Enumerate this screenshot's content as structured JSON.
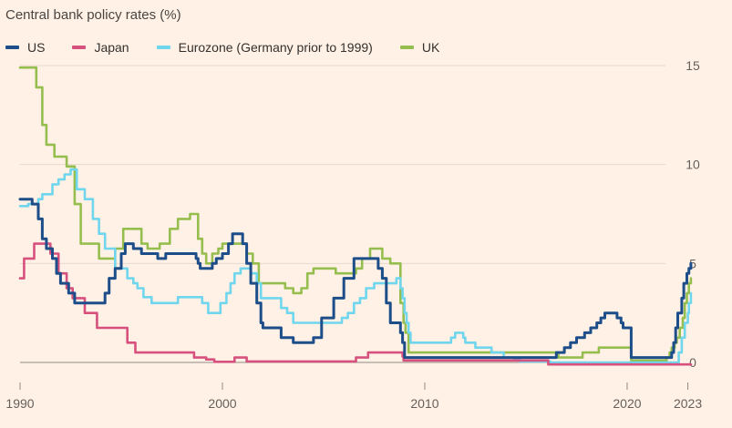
{
  "chart_data": {
    "type": "line",
    "title": "Central bank policy rates (%)",
    "xlabel": "",
    "ylabel": "",
    "xlim": [
      1990,
      2023.2
    ],
    "ylim": [
      0,
      15
    ],
    "y_ticks": [
      0,
      5,
      10,
      15
    ],
    "x_ticks": [
      1990,
      2000,
      2010,
      2020,
      2023
    ],
    "grid": true,
    "legend_position": "top-left",
    "series": [
      {
        "name": "US",
        "color": "#1d4e89",
        "points": [
          [
            1990,
            8.25
          ],
          [
            1990.6,
            8.0
          ],
          [
            1990.9,
            7.25
          ],
          [
            1991.1,
            6.25
          ],
          [
            1991.3,
            5.75
          ],
          [
            1991.6,
            5.25
          ],
          [
            1991.8,
            4.5
          ],
          [
            1992.0,
            4.0
          ],
          [
            1992.4,
            3.5
          ],
          [
            1992.7,
            3.0
          ],
          [
            1994.0,
            3.0
          ],
          [
            1994.2,
            3.5
          ],
          [
            1994.4,
            4.25
          ],
          [
            1994.7,
            4.75
          ],
          [
            1995.0,
            5.5
          ],
          [
            1995.2,
            6.0
          ],
          [
            1995.6,
            5.75
          ],
          [
            1996.0,
            5.5
          ],
          [
            1996.8,
            5.25
          ],
          [
            1997.2,
            5.5
          ],
          [
            1998.7,
            5.25
          ],
          [
            1998.8,
            5.0
          ],
          [
            1998.9,
            4.75
          ],
          [
            1999.5,
            5.0
          ],
          [
            1999.7,
            5.25
          ],
          [
            2000.0,
            5.5
          ],
          [
            2000.3,
            6.0
          ],
          [
            2000.5,
            6.5
          ],
          [
            2001.0,
            6.0
          ],
          [
            2001.2,
            5.0
          ],
          [
            2001.4,
            4.0
          ],
          [
            2001.7,
            3.0
          ],
          [
            2001.9,
            2.0
          ],
          [
            2002.0,
            1.75
          ],
          [
            2002.9,
            1.25
          ],
          [
            2003.5,
            1.0
          ],
          [
            2004.5,
            1.25
          ],
          [
            2004.9,
            2.25
          ],
          [
            2005.5,
            3.25
          ],
          [
            2006.0,
            4.25
          ],
          [
            2006.5,
            5.25
          ],
          [
            2007.6,
            5.25
          ],
          [
            2007.7,
            4.75
          ],
          [
            2007.9,
            4.25
          ],
          [
            2008.1,
            3.0
          ],
          [
            2008.3,
            2.0
          ],
          [
            2008.8,
            1.5
          ],
          [
            2008.9,
            1.0
          ],
          [
            2009.0,
            0.25
          ],
          [
            2015.9,
            0.25
          ],
          [
            2016.5,
            0.5
          ],
          [
            2016.9,
            0.75
          ],
          [
            2017.2,
            1.0
          ],
          [
            2017.5,
            1.25
          ],
          [
            2017.9,
            1.5
          ],
          [
            2018.2,
            1.75
          ],
          [
            2018.5,
            2.0
          ],
          [
            2018.7,
            2.25
          ],
          [
            2018.9,
            2.5
          ],
          [
            2019.5,
            2.25
          ],
          [
            2019.7,
            2.0
          ],
          [
            2019.8,
            1.75
          ],
          [
            2020.2,
            0.25
          ],
          [
            2022.2,
            0.5
          ],
          [
            2022.3,
            1.0
          ],
          [
            2022.4,
            1.75
          ],
          [
            2022.5,
            2.5
          ],
          [
            2022.7,
            3.25
          ],
          [
            2022.8,
            4.0
          ],
          [
            2022.95,
            4.5
          ],
          [
            2023.05,
            4.75
          ],
          [
            2023.15,
            5.0
          ]
        ]
      },
      {
        "name": "Japan",
        "color": "#d6517d",
        "points": [
          [
            1990,
            4.25
          ],
          [
            1990.2,
            5.25
          ],
          [
            1990.7,
            6.0
          ],
          [
            1991.5,
            5.5
          ],
          [
            1991.9,
            4.5
          ],
          [
            1992.3,
            3.75
          ],
          [
            1992.6,
            3.25
          ],
          [
            1993.2,
            2.5
          ],
          [
            1993.8,
            1.75
          ],
          [
            1995.3,
            1.0
          ],
          [
            1995.7,
            0.5
          ],
          [
            1998.6,
            0.25
          ],
          [
            1999.2,
            0.15
          ],
          [
            1999.6,
            0.03
          ],
          [
            2000.6,
            0.25
          ],
          [
            2001.2,
            0.05
          ],
          [
            2006.6,
            0.25
          ],
          [
            2007.2,
            0.5
          ],
          [
            2008.9,
            0.3
          ],
          [
            2008.95,
            0.1
          ],
          [
            2016.1,
            -0.1
          ],
          [
            2023.15,
            -0.1
          ]
        ]
      },
      {
        "name": "Eurozone (Germany prior to 1999)",
        "color": "#6fd6ee",
        "points": [
          [
            1990,
            7.9
          ],
          [
            1990.4,
            8.0
          ],
          [
            1990.9,
            8.25
          ],
          [
            1991.1,
            8.5
          ],
          [
            1991.6,
            9.0
          ],
          [
            1991.9,
            9.25
          ],
          [
            1992.2,
            9.5
          ],
          [
            1992.5,
            9.75
          ],
          [
            1992.8,
            8.75
          ],
          [
            1993.2,
            8.25
          ],
          [
            1993.6,
            7.25
          ],
          [
            1993.9,
            6.5
          ],
          [
            1994.2,
            5.75
          ],
          [
            1994.7,
            4.75
          ],
          [
            1995.3,
            4.25
          ],
          [
            1995.6,
            4.0
          ],
          [
            1995.8,
            3.75
          ],
          [
            1996.1,
            3.3
          ],
          [
            1996.5,
            3.0
          ],
          [
            1997.8,
            3.3
          ],
          [
            1999.0,
            3.0
          ],
          [
            1999.3,
            2.5
          ],
          [
            1999.9,
            3.0
          ],
          [
            2000.2,
            3.5
          ],
          [
            2000.4,
            4.0
          ],
          [
            2000.6,
            4.5
          ],
          [
            2000.9,
            4.75
          ],
          [
            2001.4,
            4.5
          ],
          [
            2001.7,
            4.0
          ],
          [
            2001.9,
            3.25
          ],
          [
            2002.9,
            2.75
          ],
          [
            2003.2,
            2.5
          ],
          [
            2003.5,
            2.0
          ],
          [
            2005.9,
            2.25
          ],
          [
            2006.2,
            2.5
          ],
          [
            2006.5,
            3.0
          ],
          [
            2006.8,
            3.25
          ],
          [
            2007.1,
            3.75
          ],
          [
            2007.5,
            4.0
          ],
          [
            2008.6,
            4.25
          ],
          [
            2008.8,
            3.75
          ],
          [
            2008.9,
            3.25
          ],
          [
            2009.0,
            2.5
          ],
          [
            2009.1,
            2.0
          ],
          [
            2009.2,
            1.5
          ],
          [
            2009.3,
            1.0
          ],
          [
            2011.3,
            1.25
          ],
          [
            2011.5,
            1.5
          ],
          [
            2011.9,
            1.25
          ],
          [
            2012.0,
            1.0
          ],
          [
            2012.5,
            0.75
          ],
          [
            2013.3,
            0.5
          ],
          [
            2013.9,
            0.25
          ],
          [
            2014.4,
            0.15
          ],
          [
            2014.7,
            0.05
          ],
          [
            2016.2,
            0.0
          ],
          [
            2022.55,
            0.5
          ],
          [
            2022.7,
            1.25
          ],
          [
            2022.85,
            2.0
          ],
          [
            2023.0,
            2.5
          ],
          [
            2023.05,
            3.0
          ],
          [
            2023.15,
            3.5
          ]
        ]
      },
      {
        "name": "UK",
        "color": "#96be4f",
        "points": [
          [
            1990,
            14.9
          ],
          [
            1990.8,
            13.9
          ],
          [
            1991.1,
            12.0
          ],
          [
            1991.3,
            11.0
          ],
          [
            1991.7,
            10.4
          ],
          [
            1992.3,
            9.9
          ],
          [
            1992.7,
            8.0
          ],
          [
            1993.0,
            6.0
          ],
          [
            1993.9,
            5.25
          ],
          [
            1994.7,
            5.75
          ],
          [
            1995.1,
            6.75
          ],
          [
            1996.0,
            6.0
          ],
          [
            1996.3,
            5.75
          ],
          [
            1996.9,
            6.0
          ],
          [
            1997.4,
            6.75
          ],
          [
            1997.8,
            7.25
          ],
          [
            1998.4,
            7.5
          ],
          [
            1998.8,
            6.25
          ],
          [
            1999.0,
            5.5
          ],
          [
            1999.2,
            5.0
          ],
          [
            1999.5,
            5.5
          ],
          [
            1999.8,
            5.75
          ],
          [
            2000.0,
            6.0
          ],
          [
            2001.2,
            5.5
          ],
          [
            2001.5,
            5.0
          ],
          [
            2001.8,
            4.0
          ],
          [
            2003.1,
            3.75
          ],
          [
            2003.5,
            3.5
          ],
          [
            2003.9,
            3.75
          ],
          [
            2004.2,
            4.5
          ],
          [
            2004.5,
            4.75
          ],
          [
            2005.6,
            4.5
          ],
          [
            2006.6,
            4.75
          ],
          [
            2006.9,
            5.25
          ],
          [
            2007.3,
            5.75
          ],
          [
            2007.9,
            5.25
          ],
          [
            2008.3,
            5.0
          ],
          [
            2008.8,
            3.0
          ],
          [
            2008.95,
            2.0
          ],
          [
            2009.05,
            1.5
          ],
          [
            2009.2,
            0.5
          ],
          [
            2016.6,
            0.25
          ],
          [
            2017.8,
            0.5
          ],
          [
            2018.6,
            0.75
          ],
          [
            2020.2,
            0.1
          ],
          [
            2021.95,
            0.25
          ],
          [
            2022.1,
            0.5
          ],
          [
            2022.2,
            0.75
          ],
          [
            2022.35,
            1.0
          ],
          [
            2022.45,
            1.25
          ],
          [
            2022.6,
            1.75
          ],
          [
            2022.75,
            2.25
          ],
          [
            2022.85,
            3.0
          ],
          [
            2022.95,
            3.5
          ],
          [
            2023.05,
            4.0
          ],
          [
            2023.15,
            4.25
          ]
        ]
      }
    ]
  }
}
